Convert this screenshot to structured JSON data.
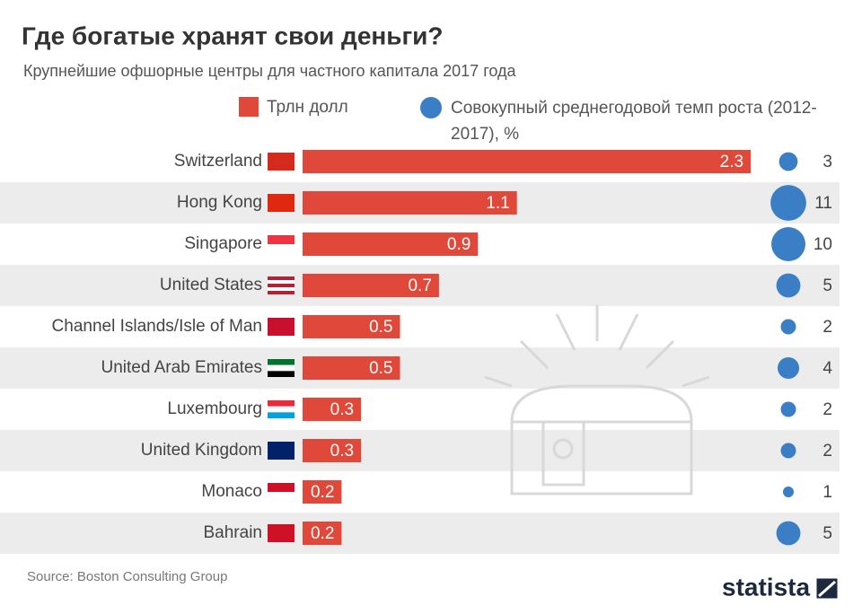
{
  "chart_data": {
    "type": "bar",
    "title": "Где богатые хранят свои деньги?",
    "subtitle": "Крупнейшие офшорные центры для частного капитала 2017 года",
    "categories": [
      "Switzerland",
      "Hong Kong",
      "Singapore",
      "United States",
      "Channel Islands/Isle of Man",
      "United Arab Emirates",
      "Luxembourg",
      "United Kingdom",
      "Monaco",
      "Bahrain"
    ],
    "series": [
      {
        "name": "Трлн долл",
        "color": "#e0493a",
        "values": [
          2.3,
          1.1,
          0.9,
          0.7,
          0.5,
          0.5,
          0.3,
          0.3,
          0.2,
          0.2
        ]
      },
      {
        "name": "Совокупный среднегодовой темп роста (2012-2017), %",
        "color": "#3a7ec6",
        "values": [
          3,
          11,
          10,
          5,
          2,
          4,
          2,
          2,
          1,
          5
        ]
      }
    ],
    "source": "Source: Boston Consulting Group",
    "brand": "statista"
  }
}
